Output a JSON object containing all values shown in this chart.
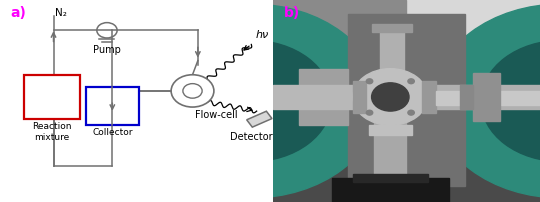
{
  "panel_a_label": "a)",
  "panel_b_label": "b)",
  "label_color": "#ff00ff",
  "label_fontsize": 10,
  "n2_label": "N₂",
  "pump_label": "Pump",
  "flowcell_label": "Flow-cell",
  "detector_label": "Detector",
  "reaction_label": "Reaction\nmixture",
  "collector_label": "Collector",
  "hv_label": "hν",
  "line_color": "#707070",
  "red_box_color": "#cc0000",
  "blue_box_color": "#0000cc",
  "bg_color": "#ffffff",
  "photo_bg": "#5a5a5a",
  "photo_teal": "#3a9090",
  "photo_metal": "#b0b0b0",
  "photo_dark": "#282828"
}
